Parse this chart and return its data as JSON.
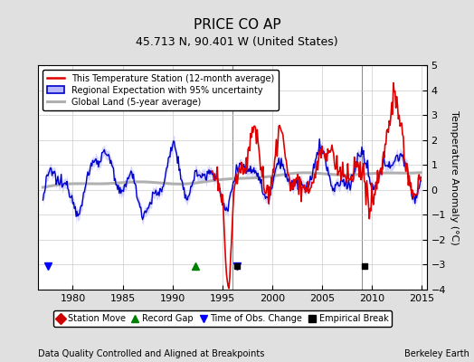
{
  "title": "PRICE CO AP",
  "subtitle": "45.713 N, 90.401 W (United States)",
  "ylabel": "Temperature Anomaly (°C)",
  "xlabel_left": "Data Quality Controlled and Aligned at Breakpoints",
  "xlabel_right": "Berkeley Earth",
  "ylim": [
    -4,
    5
  ],
  "xlim": [
    1976.5,
    2015.5
  ],
  "xticks": [
    1980,
    1985,
    1990,
    1995,
    2000,
    2005,
    2010,
    2015
  ],
  "yticks": [
    -4,
    -3,
    -2,
    -1,
    0,
    1,
    2,
    3,
    4,
    5
  ],
  "background_color": "#e0e0e0",
  "plot_bg_color": "#ffffff",
  "red_color": "#dd0000",
  "blue_color": "#0000cc",
  "blue_fill_color": "#b8b8ff",
  "gray_color": "#b0b0b0",
  "vline_color": "#888888",
  "vertical_lines": [
    1996.0,
    2009.0
  ],
  "record_gap_x": 1992.3,
  "time_obs_change_x1": 1977.5,
  "time_obs_change_x2": 1996.5,
  "empirical_break_x1": 1996.5,
  "empirical_break_x2": 2009.3,
  "marker_y": -3.05,
  "title_fontsize": 11,
  "subtitle_fontsize": 9,
  "tick_fontsize": 8,
  "ylabel_fontsize": 8
}
